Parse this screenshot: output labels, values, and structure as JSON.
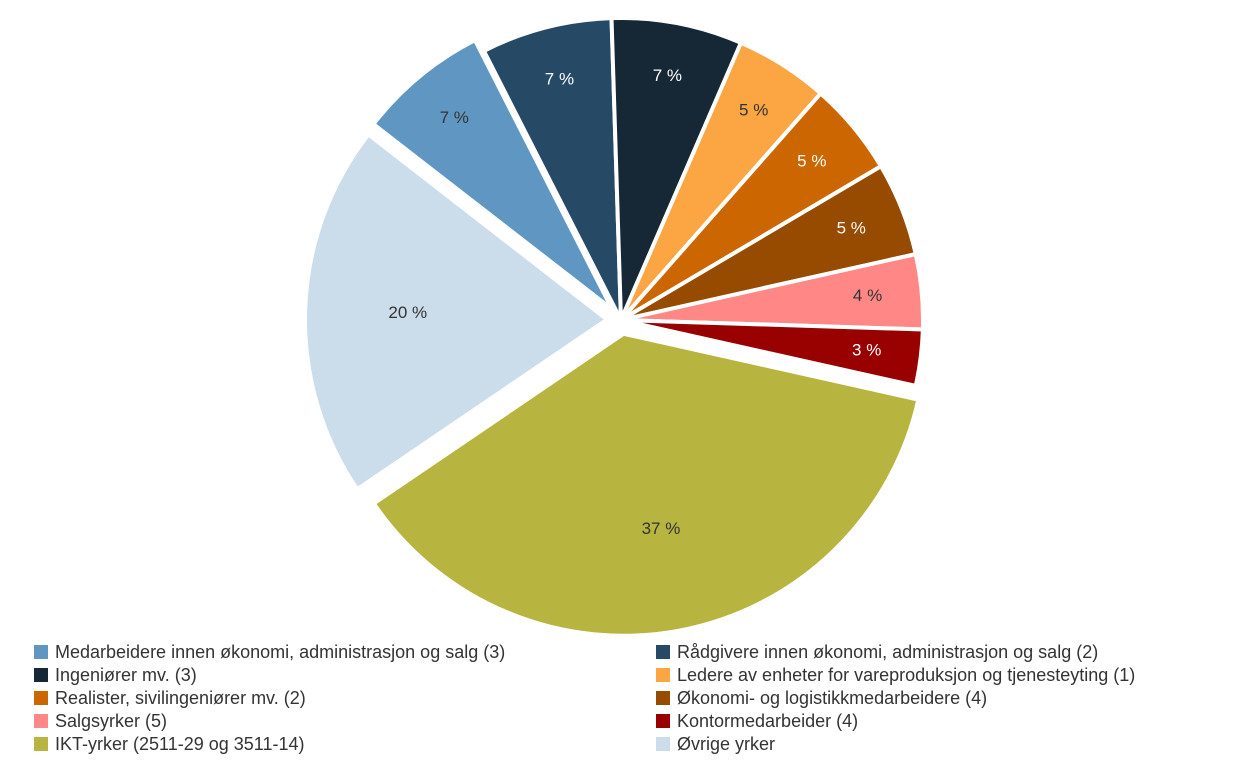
{
  "chart_data": {
    "type": "pie",
    "title": "",
    "slices": [
      {
        "name": "Medarbeidere innen økonomi, administrasjon og salg (3)",
        "value": 7,
        "label": "7 %",
        "color": "#6097C2"
      },
      {
        "name": "Rådgivere innen økonomi, administrasjon og salg (2)",
        "value": 7,
        "label": "7 %",
        "color": "#264966"
      },
      {
        "name": "Ingeniører mv. (3)",
        "value": 7,
        "label": "7 %",
        "color": "#162736"
      },
      {
        "name": "Ledere av enheter for vareproduksjon og tjenesteyting (1)",
        "value": 5,
        "label": "5 %",
        "color": "#FBA543"
      },
      {
        "name": "Realister, sivilingeniører mv. (2)",
        "value": 5,
        "label": "5 %",
        "color": "#CC6600"
      },
      {
        "name": "Økonomi- og logistikkmedarbeidere (4)",
        "value": 5,
        "label": "5 %",
        "color": "#964B00"
      },
      {
        "name": "Salgsyrker (5)",
        "value": 4,
        "label": "4 %",
        "color": "#FF8886"
      },
      {
        "name": "Kontormedarbeider (4)",
        "value": 3,
        "label": "3 %",
        "color": "#990000"
      },
      {
        "name": "IKT-yrker (2511-29 og 3511-14)",
        "value": 37,
        "label": "37 %",
        "color": "#B7B53F"
      },
      {
        "name": "Øvrige yrker",
        "value": 20,
        "label": "20 %",
        "color": "#CBDCEB"
      }
    ],
    "legend_position": "bottom",
    "label_colors": {
      "dark_slice_text": "#ffffff",
      "light_slice_text": "#333333"
    }
  }
}
